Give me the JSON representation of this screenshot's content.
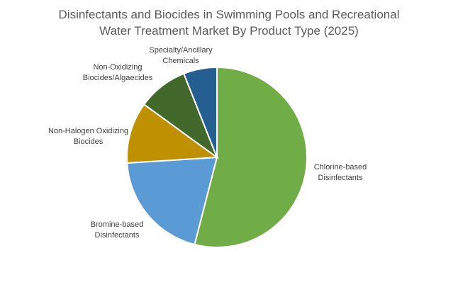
{
  "chart_data": {
    "type": "pie",
    "title": "Disinfectants and Biocides in Swimming Pools and Recreational Water Treatment Market By Product Type (2025)",
    "start_angle_deg": 0,
    "direction": "clockwise",
    "slices": [
      {
        "label": "Chlorine-based Disinfectants",
        "value": 54,
        "color": "#70ad47"
      },
      {
        "label": "Bromine-based Disinfectants",
        "value": 20,
        "color": "#5b9bd5"
      },
      {
        "label": "Non-Halogen Oxidizing Biocides",
        "value": 11,
        "color": "#bf9000"
      },
      {
        "label": "Non-Oxidizing Biocides/Algaecides",
        "value": 9,
        "color": "#43682b"
      },
      {
        "label": "Specialty/Ancillary Chemicals",
        "value": 6,
        "color": "#255e91"
      }
    ]
  }
}
